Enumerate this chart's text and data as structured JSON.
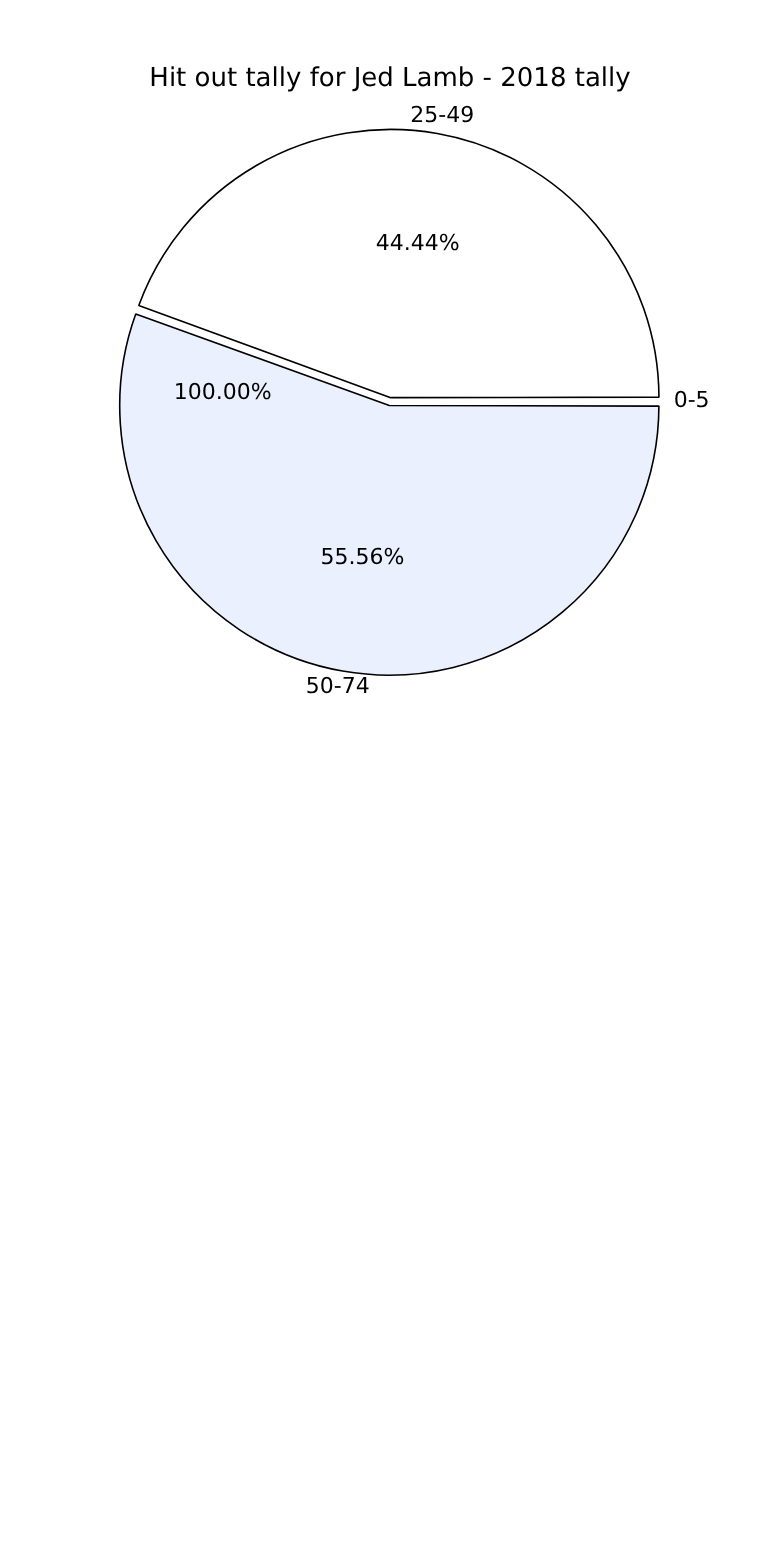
{
  "chart_data": {
    "type": "pie",
    "title": "Hit out tally for Jed Lamb - 2018 tally",
    "categories": [
      "25-49",
      "0-5",
      "50-74"
    ],
    "values": [
      44.44,
      0,
      55.56
    ],
    "value_labels": [
      "44.44%",
      null,
      "55.56%"
    ],
    "annotations": [
      "100.00%"
    ],
    "colors": [
      "#ffffff",
      "#d0dcf5",
      "#eaf0fd"
    ],
    "legend": false
  }
}
